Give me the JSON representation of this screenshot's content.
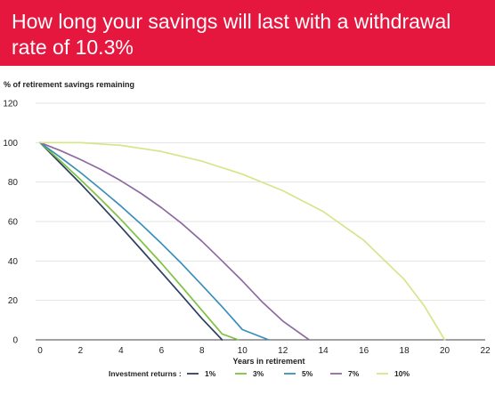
{
  "header": {
    "title": "How long your savings will last with a withdrawal rate of  10.3%",
    "background": "#e5173f",
    "text_color": "#ffffff"
  },
  "chart_data": {
    "type": "line",
    "title": "How long your savings will last with a withdrawal rate of  10.3%",
    "ylabel": "% of retirement savings remaining",
    "xlabel": "Years in retirement",
    "xlim": [
      0,
      22
    ],
    "ylim": [
      0,
      120
    ],
    "x_ticks": [
      0,
      2,
      4,
      6,
      8,
      10,
      12,
      14,
      16,
      18,
      20,
      22
    ],
    "y_ticks": [
      0,
      20,
      40,
      60,
      80,
      100,
      120
    ],
    "grid": "horizontal",
    "legend_title": "Investment returns :",
    "legend_position": "bottom",
    "series": [
      {
        "name": "1%",
        "color": "#2d3f5f",
        "points": [
          [
            0,
            100
          ],
          [
            1,
            89.6
          ],
          [
            2,
            79.2
          ],
          [
            3,
            68.3
          ],
          [
            4,
            57.2
          ],
          [
            5,
            45.8
          ],
          [
            6,
            34.2
          ],
          [
            7,
            22.6
          ],
          [
            8,
            10.8
          ],
          [
            9,
            0
          ]
        ]
      },
      {
        "name": "3%",
        "color": "#7dc242",
        "points": [
          [
            0,
            100
          ],
          [
            1,
            90.8
          ],
          [
            2,
            81.2
          ],
          [
            3,
            71.3
          ],
          [
            4,
            61.0
          ],
          [
            5,
            50.0
          ],
          [
            6,
            38.8
          ],
          [
            7,
            27.0
          ],
          [
            8,
            15.0
          ],
          [
            9,
            3.0
          ],
          [
            9.8,
            0
          ]
        ]
      },
      {
        "name": "5%",
        "color": "#3a8fba",
        "points": [
          [
            0,
            100
          ],
          [
            1,
            92.6
          ],
          [
            2,
            84.8
          ],
          [
            3,
            76.4
          ],
          [
            4,
            67.8
          ],
          [
            5,
            58.6
          ],
          [
            6,
            48.8
          ],
          [
            7,
            38.6
          ],
          [
            8,
            27.8
          ],
          [
            9,
            16.8
          ],
          [
            10,
            5.2
          ],
          [
            11.3,
            0
          ]
        ]
      },
      {
        "name": "7%",
        "color": "#8e6aa2",
        "points": [
          [
            0,
            100
          ],
          [
            1,
            96.0
          ],
          [
            2,
            91.4
          ],
          [
            3,
            86.4
          ],
          [
            4,
            80.6
          ],
          [
            5,
            74.2
          ],
          [
            6,
            67.0
          ],
          [
            7,
            59.0
          ],
          [
            8,
            50.0
          ],
          [
            9,
            40.0
          ],
          [
            10,
            29.8
          ],
          [
            11,
            19.0
          ],
          [
            12,
            9.5
          ],
          [
            13.3,
            0
          ]
        ]
      },
      {
        "name": "10%",
        "color": "#d7e58a",
        "points": [
          [
            0,
            100
          ],
          [
            2,
            100.0
          ],
          [
            4,
            98.6
          ],
          [
            6,
            95.5
          ],
          [
            8,
            90.6
          ],
          [
            10,
            84.0
          ],
          [
            12,
            75.6
          ],
          [
            14,
            65.0
          ],
          [
            16,
            50.5
          ],
          [
            18,
            30.6
          ],
          [
            19,
            17.0
          ],
          [
            20,
            0
          ]
        ]
      }
    ]
  }
}
